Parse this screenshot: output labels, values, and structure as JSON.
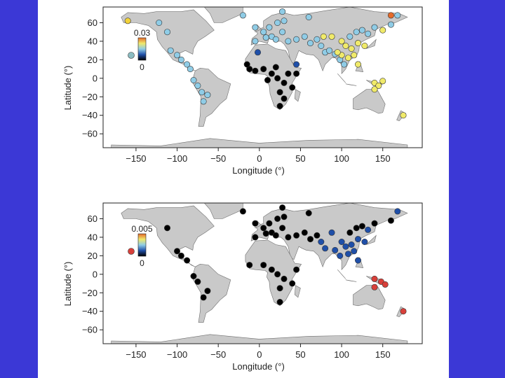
{
  "panels": [
    {
      "xlabel": "Longitude (°)",
      "ylabel": "Latitude (°)",
      "xticks": [
        "−150",
        "−100",
        "−50",
        "0",
        "50",
        "100",
        "150"
      ],
      "yticks": [
        "60",
        "40",
        "20",
        "0",
        "−20",
        "−40",
        "−60"
      ],
      "colorbar": {
        "max_label": "0.03",
        "min_label": "0",
        "stops": [
          "#000000",
          "#1f4fa8",
          "#8fcce6",
          "#f0ea6a",
          "#e56b2b"
        ]
      },
      "legend_dot_color": "#8bbcc2",
      "points": [
        {
          "lon": -160,
          "lat": 62,
          "c": "#f2d23a"
        },
        {
          "lon": -112,
          "lat": 50,
          "c": "#8fcce6"
        },
        {
          "lon": -122,
          "lat": 60,
          "c": "#8fcce6"
        },
        {
          "lon": -100,
          "lat": 25,
          "c": "#8fcce6"
        },
        {
          "lon": -108,
          "lat": 30,
          "c": "#8fcce6"
        },
        {
          "lon": -95,
          "lat": 20,
          "c": "#8fcce6"
        },
        {
          "lon": -88,
          "lat": 15,
          "c": "#8fcce6"
        },
        {
          "lon": -84,
          "lat": 10,
          "c": "#8fcce6"
        },
        {
          "lon": -80,
          "lat": -2,
          "c": "#8fcce6"
        },
        {
          "lon": -75,
          "lat": -8,
          "c": "#8fcce6"
        },
        {
          "lon": -70,
          "lat": -15,
          "c": "#8fcce6"
        },
        {
          "lon": -68,
          "lat": -25,
          "c": "#8fcce6"
        },
        {
          "lon": -63,
          "lat": -18,
          "c": "#8fcce6"
        },
        {
          "lon": -20,
          "lat": 68,
          "c": "#8fcce6"
        },
        {
          "lon": -5,
          "lat": 55,
          "c": "#8fcce6"
        },
        {
          "lon": 5,
          "lat": 50,
          "c": "#8fcce6"
        },
        {
          "lon": 12,
          "lat": 55,
          "c": "#8fcce6"
        },
        {
          "lon": 22,
          "lat": 60,
          "c": "#8fcce6"
        },
        {
          "lon": 30,
          "lat": 62,
          "c": "#8fcce6"
        },
        {
          "lon": 28,
          "lat": 50,
          "c": "#8fcce6"
        },
        {
          "lon": 15,
          "lat": 45,
          "c": "#8fcce6"
        },
        {
          "lon": -5,
          "lat": 40,
          "c": "#8fcce6"
        },
        {
          "lon": 8,
          "lat": 44,
          "c": "#8fcce6"
        },
        {
          "lon": 20,
          "lat": 42,
          "c": "#8fcce6"
        },
        {
          "lon": 35,
          "lat": 40,
          "c": "#8fcce6"
        },
        {
          "lon": 45,
          "lat": 42,
          "c": "#8fcce6"
        },
        {
          "lon": 55,
          "lat": 45,
          "c": "#8fcce6"
        },
        {
          "lon": 62,
          "lat": 38,
          "c": "#8fcce6"
        },
        {
          "lon": 70,
          "lat": 42,
          "c": "#8fcce6"
        },
        {
          "lon": 75,
          "lat": 35,
          "c": "#8fcce6"
        },
        {
          "lon": 80,
          "lat": 28,
          "c": "#8fcce6"
        },
        {
          "lon": 85,
          "lat": 30,
          "c": "#8fcce6"
        },
        {
          "lon": 92,
          "lat": 26,
          "c": "#8fcce6"
        },
        {
          "lon": 98,
          "lat": 20,
          "c": "#8fcce6"
        },
        {
          "lon": 103,
          "lat": 15,
          "c": "#8fcce6"
        },
        {
          "lon": 110,
          "lat": 45,
          "c": "#8fcce6"
        },
        {
          "lon": 118,
          "lat": 50,
          "c": "#8fcce6"
        },
        {
          "lon": 125,
          "lat": 52,
          "c": "#8fcce6"
        },
        {
          "lon": 132,
          "lat": 48,
          "c": "#8fcce6"
        },
        {
          "lon": 140,
          "lat": 55,
          "c": "#8fcce6"
        },
        {
          "lon": 160,
          "lat": 58,
          "c": "#8fcce6"
        },
        {
          "lon": 168,
          "lat": 68,
          "c": "#8fcce6"
        },
        {
          "lon": 28,
          "lat": 72,
          "c": "#8fcce6"
        },
        {
          "lon": 60,
          "lat": 66,
          "c": "#8fcce6"
        },
        {
          "lon": -2,
          "lat": 28,
          "c": "#1f4fa8"
        },
        {
          "lon": 45,
          "lat": 15,
          "c": "#1f4fa8"
        },
        {
          "lon": 78,
          "lat": 45,
          "c": "#f0ea6a"
        },
        {
          "lon": 88,
          "lat": 45,
          "c": "#f0ea6a"
        },
        {
          "lon": 100,
          "lat": 40,
          "c": "#f0ea6a"
        },
        {
          "lon": 105,
          "lat": 35,
          "c": "#f0ea6a"
        },
        {
          "lon": 112,
          "lat": 32,
          "c": "#f0ea6a"
        },
        {
          "lon": 120,
          "lat": 38,
          "c": "#f0ea6a"
        },
        {
          "lon": 100,
          "lat": 25,
          "c": "#f0ea6a"
        },
        {
          "lon": 108,
          "lat": 22,
          "c": "#f0ea6a"
        },
        {
          "lon": 95,
          "lat": 28,
          "c": "#f0ea6a"
        },
        {
          "lon": 115,
          "lat": 25,
          "c": "#f0ea6a"
        },
        {
          "lon": 128,
          "lat": 35,
          "c": "#f0ea6a"
        },
        {
          "lon": 120,
          "lat": 15,
          "c": "#f0ea6a"
        },
        {
          "lon": 140,
          "lat": -5,
          "c": "#f0ea6a"
        },
        {
          "lon": 145,
          "lat": -8,
          "c": "#f0ea6a"
        },
        {
          "lon": 150,
          "lat": -3,
          "c": "#f0ea6a"
        },
        {
          "lon": 140,
          "lat": -12,
          "c": "#f0ea6a"
        },
        {
          "lon": 175,
          "lat": -40,
          "c": "#f0ea6a"
        },
        {
          "lon": 160,
          "lat": 68,
          "c": "#e56b2b"
        },
        {
          "lon": 150,
          "lat": 52,
          "c": "#f0ea6a"
        },
        {
          "lon": -12,
          "lat": 10,
          "c": "#000000"
        },
        {
          "lon": -5,
          "lat": 8,
          "c": "#000000"
        },
        {
          "lon": 5,
          "lat": 10,
          "c": "#000000"
        },
        {
          "lon": 15,
          "lat": 5,
          "c": "#000000"
        },
        {
          "lon": 10,
          "lat": -2,
          "c": "#000000"
        },
        {
          "lon": 22,
          "lat": 0,
          "c": "#000000"
        },
        {
          "lon": 30,
          "lat": -5,
          "c": "#000000"
        },
        {
          "lon": 35,
          "lat": 5,
          "c": "#000000"
        },
        {
          "lon": 25,
          "lat": -15,
          "c": "#000000"
        },
        {
          "lon": 30,
          "lat": -22,
          "c": "#000000"
        },
        {
          "lon": 25,
          "lat": -30,
          "c": "#000000"
        },
        {
          "lon": 40,
          "lat": -10,
          "c": "#000000"
        },
        {
          "lon": 45,
          "lat": 5,
          "c": "#000000"
        },
        {
          "lon": -15,
          "lat": 15,
          "c": "#000000"
        },
        {
          "lon": 20,
          "lat": 12,
          "c": "#000000"
        }
      ]
    },
    {
      "xlabel": "Longitude (°)",
      "ylabel": "Latitude (°)",
      "xticks": [
        "−150",
        "−100",
        "−50",
        "0",
        "50",
        "100",
        "150"
      ],
      "yticks": [
        "60",
        "40",
        "20",
        "0",
        "−20",
        "−40",
        "−60"
      ],
      "colorbar": {
        "max_label": "0.005",
        "min_label": "0",
        "stops": [
          "#000000",
          "#1f4fa8",
          "#8fcce6",
          "#f0ea6a",
          "#e56b2b"
        ]
      },
      "legend_dot_color": "#d8403a",
      "points": [
        {
          "lon": -112,
          "lat": 50,
          "c": "#000000"
        },
        {
          "lon": -100,
          "lat": 25,
          "c": "#000000"
        },
        {
          "lon": -95,
          "lat": 20,
          "c": "#000000"
        },
        {
          "lon": -88,
          "lat": 15,
          "c": "#000000"
        },
        {
          "lon": -80,
          "lat": -2,
          "c": "#000000"
        },
        {
          "lon": -75,
          "lat": -8,
          "c": "#000000"
        },
        {
          "lon": -68,
          "lat": -25,
          "c": "#000000"
        },
        {
          "lon": -63,
          "lat": -18,
          "c": "#000000"
        },
        {
          "lon": -20,
          "lat": 68,
          "c": "#000000"
        },
        {
          "lon": -5,
          "lat": 55,
          "c": "#000000"
        },
        {
          "lon": 5,
          "lat": 50,
          "c": "#000000"
        },
        {
          "lon": 12,
          "lat": 55,
          "c": "#000000"
        },
        {
          "lon": 22,
          "lat": 60,
          "c": "#000000"
        },
        {
          "lon": 30,
          "lat": 62,
          "c": "#000000"
        },
        {
          "lon": 28,
          "lat": 50,
          "c": "#000000"
        },
        {
          "lon": 15,
          "lat": 45,
          "c": "#000000"
        },
        {
          "lon": -5,
          "lat": 40,
          "c": "#000000"
        },
        {
          "lon": 8,
          "lat": 44,
          "c": "#000000"
        },
        {
          "lon": 20,
          "lat": 42,
          "c": "#000000"
        },
        {
          "lon": 35,
          "lat": 40,
          "c": "#000000"
        },
        {
          "lon": 45,
          "lat": 42,
          "c": "#000000"
        },
        {
          "lon": 55,
          "lat": 45,
          "c": "#000000"
        },
        {
          "lon": 62,
          "lat": 38,
          "c": "#000000"
        },
        {
          "lon": 70,
          "lat": 42,
          "c": "#000000"
        },
        {
          "lon": 28,
          "lat": 72,
          "c": "#000000"
        },
        {
          "lon": 60,
          "lat": 66,
          "c": "#000000"
        },
        {
          "lon": -12,
          "lat": 10,
          "c": "#000000"
        },
        {
          "lon": 5,
          "lat": 10,
          "c": "#000000"
        },
        {
          "lon": 15,
          "lat": 5,
          "c": "#000000"
        },
        {
          "lon": 22,
          "lat": 0,
          "c": "#000000"
        },
        {
          "lon": 30,
          "lat": -5,
          "c": "#000000"
        },
        {
          "lon": 25,
          "lat": -15,
          "c": "#000000"
        },
        {
          "lon": 25,
          "lat": -30,
          "c": "#000000"
        },
        {
          "lon": 40,
          "lat": -10,
          "c": "#000000"
        },
        {
          "lon": 45,
          "lat": 5,
          "c": "#000000"
        },
        {
          "lon": 110,
          "lat": 45,
          "c": "#000000"
        },
        {
          "lon": 118,
          "lat": 50,
          "c": "#000000"
        },
        {
          "lon": 125,
          "lat": 52,
          "c": "#000000"
        },
        {
          "lon": 140,
          "lat": 55,
          "c": "#000000"
        },
        {
          "lon": 160,
          "lat": 58,
          "c": "#000000"
        },
        {
          "lon": 168,
          "lat": 68,
          "c": "#1f4fa8"
        },
        {
          "lon": 75,
          "lat": 35,
          "c": "#1f4fa8"
        },
        {
          "lon": 80,
          "lat": 28,
          "c": "#1f4fa8"
        },
        {
          "lon": 88,
          "lat": 45,
          "c": "#1f4fa8"
        },
        {
          "lon": 92,
          "lat": 26,
          "c": "#1f4fa8"
        },
        {
          "lon": 98,
          "lat": 20,
          "c": "#1f4fa8"
        },
        {
          "lon": 100,
          "lat": 35,
          "c": "#1f4fa8"
        },
        {
          "lon": 105,
          "lat": 30,
          "c": "#1f4fa8"
        },
        {
          "lon": 112,
          "lat": 32,
          "c": "#1f4fa8"
        },
        {
          "lon": 120,
          "lat": 38,
          "c": "#1f4fa8"
        },
        {
          "lon": 108,
          "lat": 22,
          "c": "#1f4fa8"
        },
        {
          "lon": 115,
          "lat": 25,
          "c": "#1f4fa8"
        },
        {
          "lon": 128,
          "lat": 35,
          "c": "#1f4fa8"
        },
        {
          "lon": 120,
          "lat": 15,
          "c": "#1f4fa8"
        },
        {
          "lon": 132,
          "lat": 48,
          "c": "#1f4fa8"
        },
        {
          "lon": 140,
          "lat": -5,
          "c": "#d8403a"
        },
        {
          "lon": 148,
          "lat": -8,
          "c": "#d8403a"
        },
        {
          "lon": 140,
          "lat": -14,
          "c": "#d8403a"
        },
        {
          "lon": 153,
          "lat": -11,
          "c": "#d8403a"
        },
        {
          "lon": 175,
          "lat": -40,
          "c": "#d8403a"
        }
      ]
    }
  ]
}
